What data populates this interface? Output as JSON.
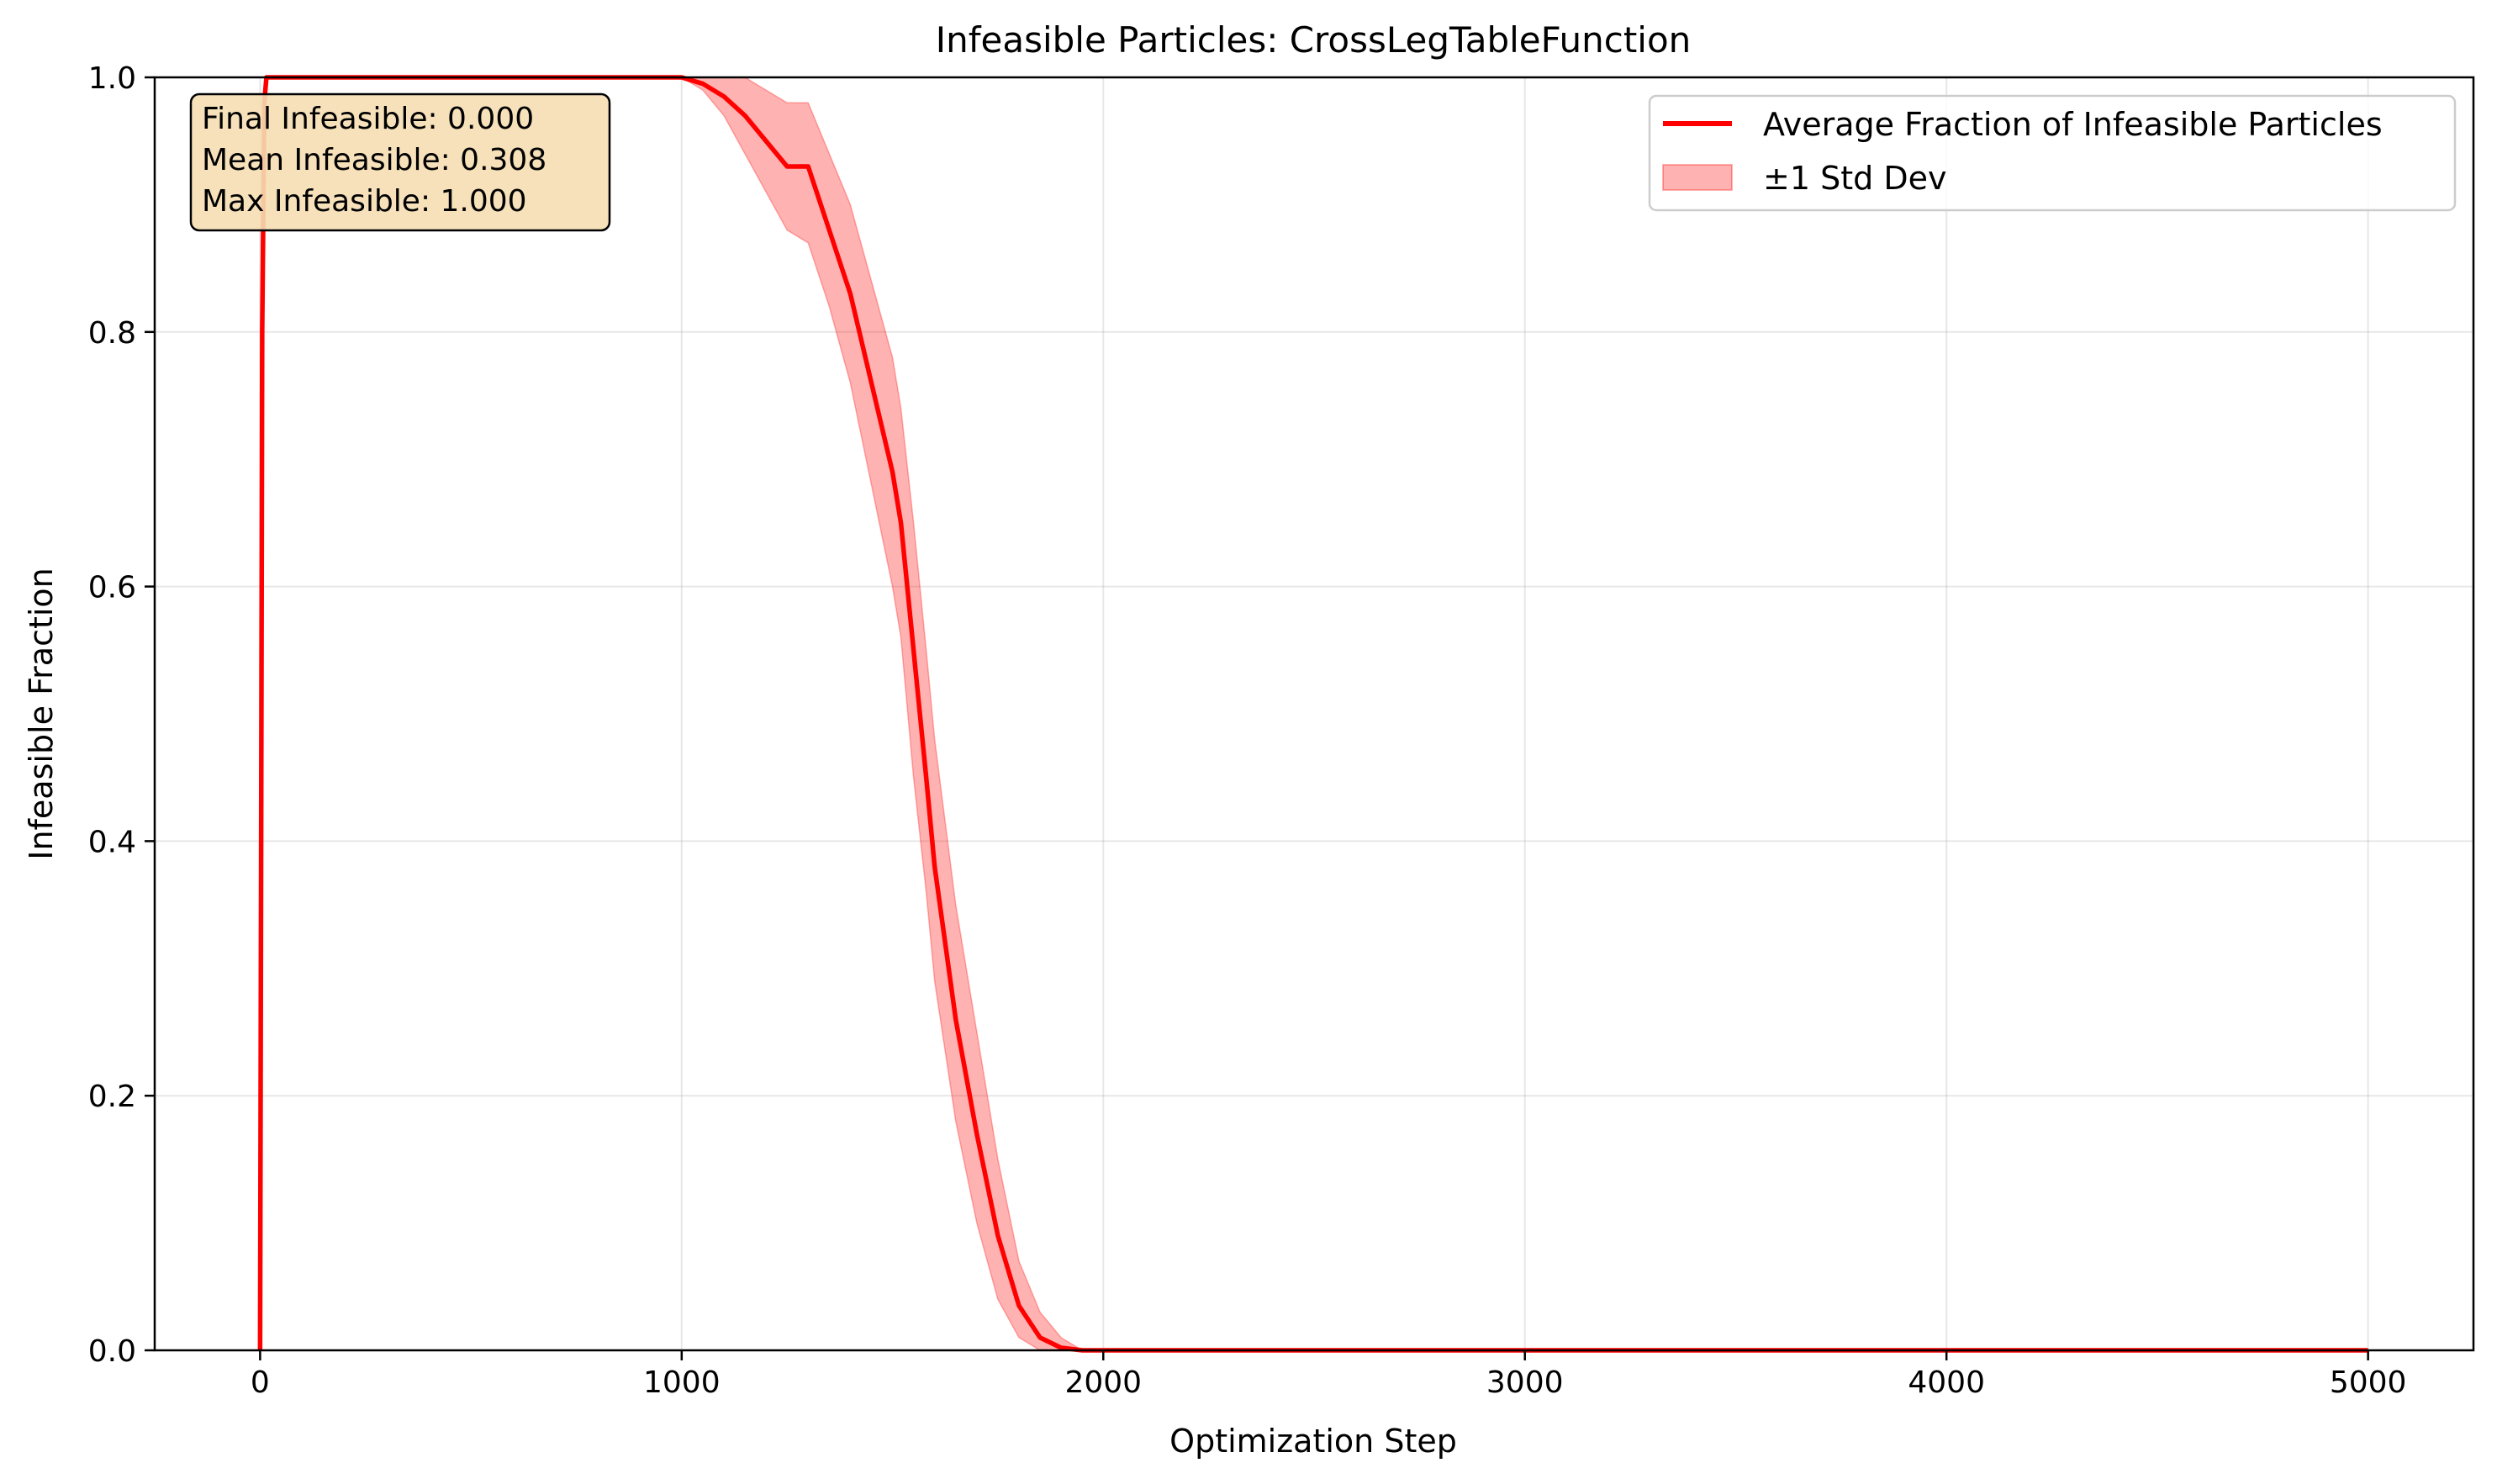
{
  "chart_data": {
    "type": "line",
    "title": "Infeasible Particles: CrossLegTableFunction",
    "xlabel": "Optimization Step",
    "ylabel": "Infeasible Fraction",
    "xlim": [
      -250,
      5250
    ],
    "ylim": [
      0,
      1
    ],
    "xticks": [
      0,
      1000,
      2000,
      3000,
      4000,
      5000
    ],
    "yticks": [
      0.0,
      0.2,
      0.4,
      0.6,
      0.8,
      1.0
    ],
    "xtick_labels": [
      "0",
      "1000",
      "2000",
      "3000",
      "4000",
      "5000"
    ],
    "ytick_labels": [
      "0.0",
      "0.2",
      "0.4",
      "0.6",
      "0.8",
      "1.0"
    ],
    "grid": true,
    "legend_position": "top-right",
    "stats_box_position": "top-left",
    "stats_box": {
      "line1": "Final Infeasible: 0.000",
      "line2": "Mean Infeasible: 0.308",
      "line3": "Max Infeasible: 1.000"
    },
    "series": [
      {
        "name": "Average Fraction of Infeasible Particles",
        "color": "#ff0000",
        "x": [
          0,
          5,
          10,
          15,
          1000,
          1050,
          1100,
          1150,
          1200,
          1250,
          1300,
          1350,
          1400,
          1450,
          1500,
          1520,
          1550,
          1580,
          1600,
          1650,
          1700,
          1750,
          1800,
          1850,
          1900,
          1950,
          2000,
          5000
        ],
        "y": [
          0.0,
          0.8,
          0.98,
          1.0,
          1.0,
          0.995,
          0.985,
          0.97,
          0.95,
          0.93,
          0.93,
          0.88,
          0.83,
          0.76,
          0.69,
          0.65,
          0.55,
          0.45,
          0.38,
          0.26,
          0.17,
          0.09,
          0.035,
          0.01,
          0.002,
          0.0,
          0.0,
          0.0
        ]
      }
    ],
    "band": {
      "name": "±1 Std Dev",
      "color": "#ff6666",
      "x": [
        1000,
        1050,
        1100,
        1150,
        1200,
        1250,
        1300,
        1350,
        1400,
        1450,
        1500,
        1520,
        1550,
        1580,
        1600,
        1650,
        1700,
        1750,
        1800,
        1850,
        1900,
        1950
      ],
      "upper": [
        1.0,
        1.0,
        1.0,
        1.0,
        0.99,
        0.98,
        0.98,
        0.94,
        0.9,
        0.84,
        0.78,
        0.74,
        0.65,
        0.55,
        0.48,
        0.35,
        0.25,
        0.15,
        0.07,
        0.03,
        0.01,
        0.0
      ],
      "lower": [
        1.0,
        0.99,
        0.97,
        0.94,
        0.91,
        0.88,
        0.87,
        0.82,
        0.76,
        0.68,
        0.6,
        0.56,
        0.45,
        0.36,
        0.29,
        0.18,
        0.1,
        0.04,
        0.01,
        0.0,
        0.0,
        0.0
      ]
    }
  }
}
